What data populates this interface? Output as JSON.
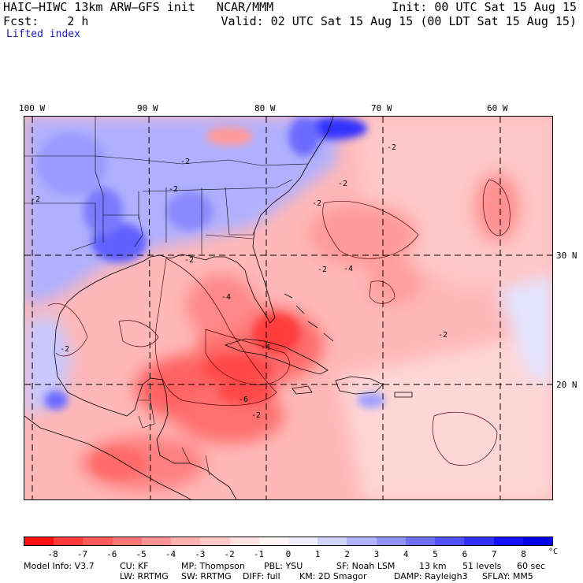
{
  "header": {
    "title": "HAIC–HIWC 13km ARW–GFS init   NCAR/MMM",
    "init": "Init: 00 UTC Sat 15 Aug 15",
    "fcst": "Fcst:    2 h",
    "valid": "Valid: 02 UTC Sat 15 Aug 15 (00 LDT Sat 15 Aug 15)",
    "field": "Lifted index"
  },
  "axes": {
    "lon_labels": [
      "100 W",
      "90 W",
      "80 W",
      "70 W",
      "60 W"
    ],
    "lat_labels": [
      "30 N",
      "20 N"
    ]
  },
  "contour_labels": [
    "-2",
    "-2",
    "-2",
    "-2",
    "-4",
    "-2",
    "-2",
    "-4",
    "-4",
    "-2",
    "-2",
    "-6",
    "-2",
    "-2",
    "-2"
  ],
  "colorbar": {
    "labels": [
      "-8",
      "-7",
      "-6",
      "-5",
      "-4",
      "-3",
      "-2",
      "-1",
      "0",
      "1",
      "2",
      "3",
      "4",
      "5",
      "6",
      "7",
      "8"
    ],
    "unit": "°C",
    "colors": [
      "#ff1010",
      "#ff3a3a",
      "#ff5a5a",
      "#ff7676",
      "#ff9494",
      "#ffb0b0",
      "#ffc8c8",
      "#ffe2e2",
      "#fff4f4",
      "#eeeeff",
      "#d2d2ff",
      "#b2b2ff",
      "#9292ff",
      "#7070ff",
      "#5050ff",
      "#3030ff",
      "#1010ff",
      "#0000e8"
    ]
  },
  "footer": {
    "line1": [
      "Model Info: V3.7",
      "CU: KF",
      "MP: Thompson",
      "PBL: YSU",
      "SF: Noah LSM",
      "13 km",
      "51 levels",
      "60 sec"
    ],
    "line2": [
      "LW: RRTMG",
      "SW: RRTMG",
      "DIFF: full",
      "KM: 2D Smagor",
      "DAMP: Rayleigh3",
      "SFLAY: MM5"
    ]
  }
}
